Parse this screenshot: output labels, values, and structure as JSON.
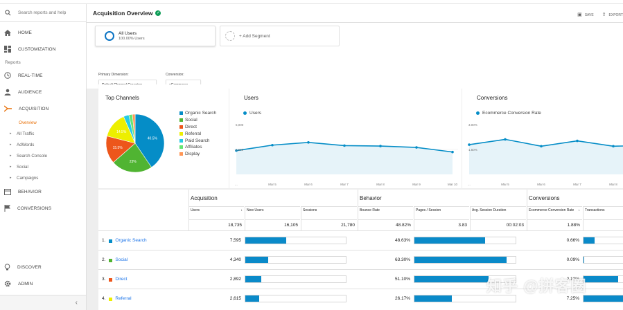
{
  "search": {
    "placeholder": "Search reports and help"
  },
  "sidebar": {
    "items": [
      {
        "label": "HOME",
        "icon": "home-icon"
      },
      {
        "label": "CUSTOMIZATION",
        "icon": "dashboard-icon"
      }
    ],
    "reports_label": "Reports",
    "report_items": [
      {
        "label": "REAL-TIME",
        "icon": "clock-icon"
      },
      {
        "label": "AUDIENCE",
        "icon": "person-icon"
      },
      {
        "label": "ACQUISITION",
        "icon": "acquisition-icon"
      }
    ],
    "overview": "Overview",
    "sub_items": [
      "All Traffic",
      "AdWords",
      "Search Console",
      "Social",
      "Campaigns"
    ],
    "after_items": [
      {
        "label": "BEHAVIOR",
        "icon": "behavior-icon"
      },
      {
        "label": "CONVERSIONS",
        "icon": "flag-icon"
      }
    ],
    "bottom_items": [
      {
        "label": "DISCOVER",
        "icon": "bulb-icon"
      },
      {
        "label": "ADMIN",
        "icon": "gear-icon"
      }
    ],
    "collapse": "‹"
  },
  "header": {
    "title": "Acquisition Overview",
    "save": "SAVE",
    "export": "EXPORT"
  },
  "segments": {
    "active_title": "All Users",
    "active_sub": "100.00% Users",
    "add": "+ Add Segment"
  },
  "dims": {
    "primary_label": "Primary Dimension:",
    "primary_value": "Default Channel Grouping",
    "conversion_label": "Conversion:",
    "conversion_value": "eCommerce"
  },
  "top_channels": {
    "title": "Top Channels",
    "legend": [
      {
        "name": "Organic Search",
        "color": "#058dc7"
      },
      {
        "name": "Social",
        "color": "#50b432"
      },
      {
        "name": "Direct",
        "color": "#ed561b"
      },
      {
        "name": "Referral",
        "color": "#edef00"
      },
      {
        "name": "Paid Search",
        "color": "#24cbe5"
      },
      {
        "name": "Affiliates",
        "color": "#64e572"
      },
      {
        "name": "Display",
        "color": "#ff9655"
      }
    ],
    "slice_labels": [
      "40.5%",
      "23%",
      "15.5%",
      "14.5%"
    ]
  },
  "users_card": {
    "title": "Users",
    "series": "Users",
    "ymax_label": "5,000",
    "ymid_label": "2,500",
    "x_labels": [
      "...",
      "Mar 5",
      "Mar 6",
      "Mar 7",
      "Mar 8",
      "Mar 9",
      "Mar 10"
    ]
  },
  "conv_card": {
    "title": "Conversions",
    "series": "Ecommerce Conversion Rate",
    "ymax_label": "3.00%",
    "ymid_label": "1.50%",
    "x_labels": [
      "...",
      "Mar 5",
      "Mar 6",
      "Mar 7",
      "Mar 8"
    ]
  },
  "chart_data": [
    {
      "type": "pie",
      "title": "Top Channels",
      "categories": [
        "Organic Search",
        "Social",
        "Direct",
        "Referral",
        "Paid Search",
        "Affiliates",
        "Display"
      ],
      "values": [
        40.5,
        23,
        15.5,
        14.5,
        3,
        2,
        1.5
      ]
    },
    {
      "type": "area",
      "title": "Users",
      "categories": [
        "Mar 4",
        "Mar 5",
        "Mar 6",
        "Mar 7",
        "Mar 8",
        "Mar 9",
        "Mar 10"
      ],
      "series": [
        {
          "name": "Users",
          "values": [
            2600,
            3200,
            3500,
            3150,
            3100,
            2950,
            2450
          ]
        }
      ],
      "ylim": [
        0,
        5000
      ]
    },
    {
      "type": "area",
      "title": "Conversions",
      "categories": [
        "Mar 4",
        "Mar 5",
        "Mar 6",
        "Mar 7",
        "Mar 8",
        "Mar 9"
      ],
      "series": [
        {
          "name": "Ecommerce Conversion Rate",
          "values": [
            1.95,
            2.3,
            1.85,
            2.2,
            1.85,
            1.9
          ]
        }
      ],
      "ylim": [
        0,
        3
      ]
    }
  ],
  "table": {
    "groups": [
      "Acquisition",
      "Behavior",
      "Conversions"
    ],
    "columns": [
      "Users",
      "New Users",
      "Sessions",
      "Bounce Rate",
      "Pages / Session",
      "Avg. Session Duration",
      "Ecommerce Conversion Rate",
      "Transactions"
    ],
    "sort_marker": "↓",
    "totals": [
      "18,735",
      "16,105",
      "21,780",
      "48.82%",
      "3.83",
      "00:02:03",
      "1.88%"
    ],
    "rows": [
      {
        "idx": "1.",
        "name": "Organic Search",
        "color": "#058dc7",
        "users": "7,595",
        "bounce": "48.63%",
        "conv": "0.66%",
        "newusers_bar": 0.41,
        "bounce_bar": 0.7,
        "trans_bar": 0.24
      },
      {
        "idx": "2.",
        "name": "Social",
        "color": "#50b432",
        "users": "4,340",
        "bounce": "63.30%",
        "conv": "0.09%",
        "newusers_bar": 0.23,
        "bounce_bar": 0.91,
        "trans_bar": 0.02
      },
      {
        "idx": "3.",
        "name": "Direct",
        "color": "#ed561b",
        "users": "2,892",
        "bounce": "51.10%",
        "conv": "2.12%",
        "newusers_bar": 0.16,
        "bounce_bar": 0.73,
        "trans_bar": 0.74
      },
      {
        "idx": "4.",
        "name": "Referral",
        "color": "#edef00",
        "users": "2,615",
        "bounce": "26.17%",
        "conv": "7.25%",
        "newusers_bar": 0.14,
        "bounce_bar": 0.37,
        "trans_bar": 1.0
      }
    ]
  },
  "watermark": "知乎 @拼客圈"
}
